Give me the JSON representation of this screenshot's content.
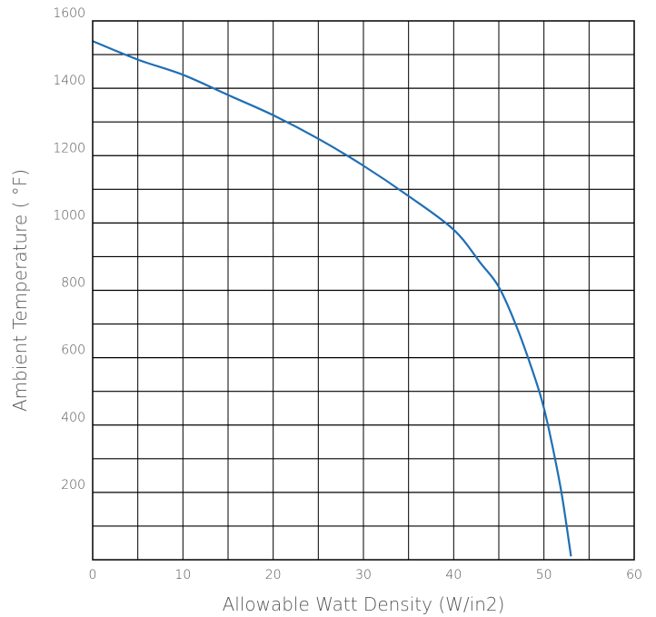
{
  "chart_data": {
    "type": "line",
    "title": "",
    "xlabel": "Allowable Watt Density (W/in2)",
    "ylabel": "Ambient Temperature ( °F)",
    "xlim": [
      0,
      60
    ],
    "ylim": [
      0,
      1600
    ],
    "x_ticks": [
      0,
      10,
      20,
      30,
      40,
      50,
      60
    ],
    "x_tick_labels": [
      "0",
      "10",
      "20",
      "30",
      "40",
      "50",
      "60"
    ],
    "y_ticks": [
      200,
      400,
      600,
      800,
      1000,
      1200,
      1400,
      1600
    ],
    "y_tick_labels": [
      "200",
      "400",
      "600",
      "800",
      "1000",
      "1200",
      "1400",
      "1600"
    ],
    "grid": true,
    "grid_x_step": 5,
    "grid_y_step": 100,
    "series": [
      {
        "color": "#1f6fb5",
        "x": [
          0,
          5,
          10,
          15,
          20,
          25,
          30,
          35,
          40,
          43,
          45,
          47,
          49,
          50,
          51,
          52,
          53
        ],
        "y": [
          1540,
          1485,
          1440,
          1380,
          1320,
          1250,
          1170,
          1080,
          980,
          880,
          810,
          690,
          540,
          450,
          330,
          190,
          10
        ]
      }
    ]
  }
}
